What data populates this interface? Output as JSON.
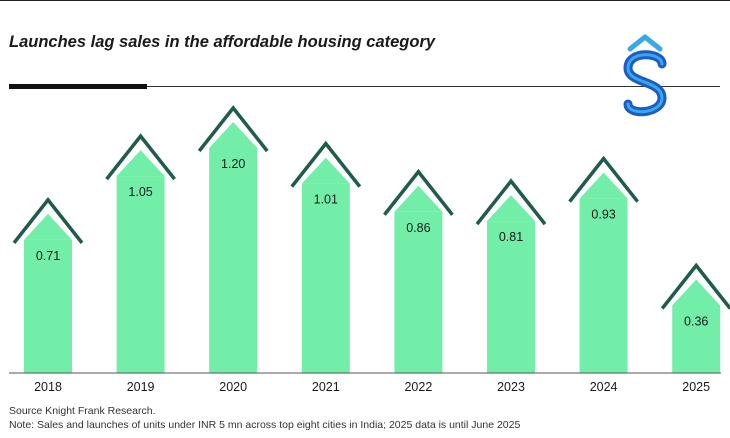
{
  "chart_data": {
    "type": "bar",
    "title": "Launches lag sales in the affordable housing category",
    "categories": [
      "2018",
      "2019",
      "2020",
      "2021",
      "2022",
      "2023",
      "2024",
      "2025"
    ],
    "values": [
      0.71,
      1.05,
      1.2,
      1.01,
      0.86,
      0.81,
      0.93,
      0.36
    ],
    "value_labels": [
      "0.71",
      "1.05",
      "1.20",
      "1.01",
      "0.86",
      "0.81",
      "0.93",
      "0.36"
    ],
    "xlabel": "",
    "ylabel": "",
    "ylim": [
      0,
      1.2
    ],
    "grid": false,
    "legend": "none"
  },
  "source": "Source Knight Frank Research.",
  "note": "Note: Sales and launches of units under INR 5 mn across top eight cities in India; 2025 data is until June 2025",
  "colors": {
    "bar": "#72eea9",
    "chevron": "#1f5d4a",
    "logo_dark": "#1e5bc6",
    "logo_light": "#36a9e6"
  }
}
